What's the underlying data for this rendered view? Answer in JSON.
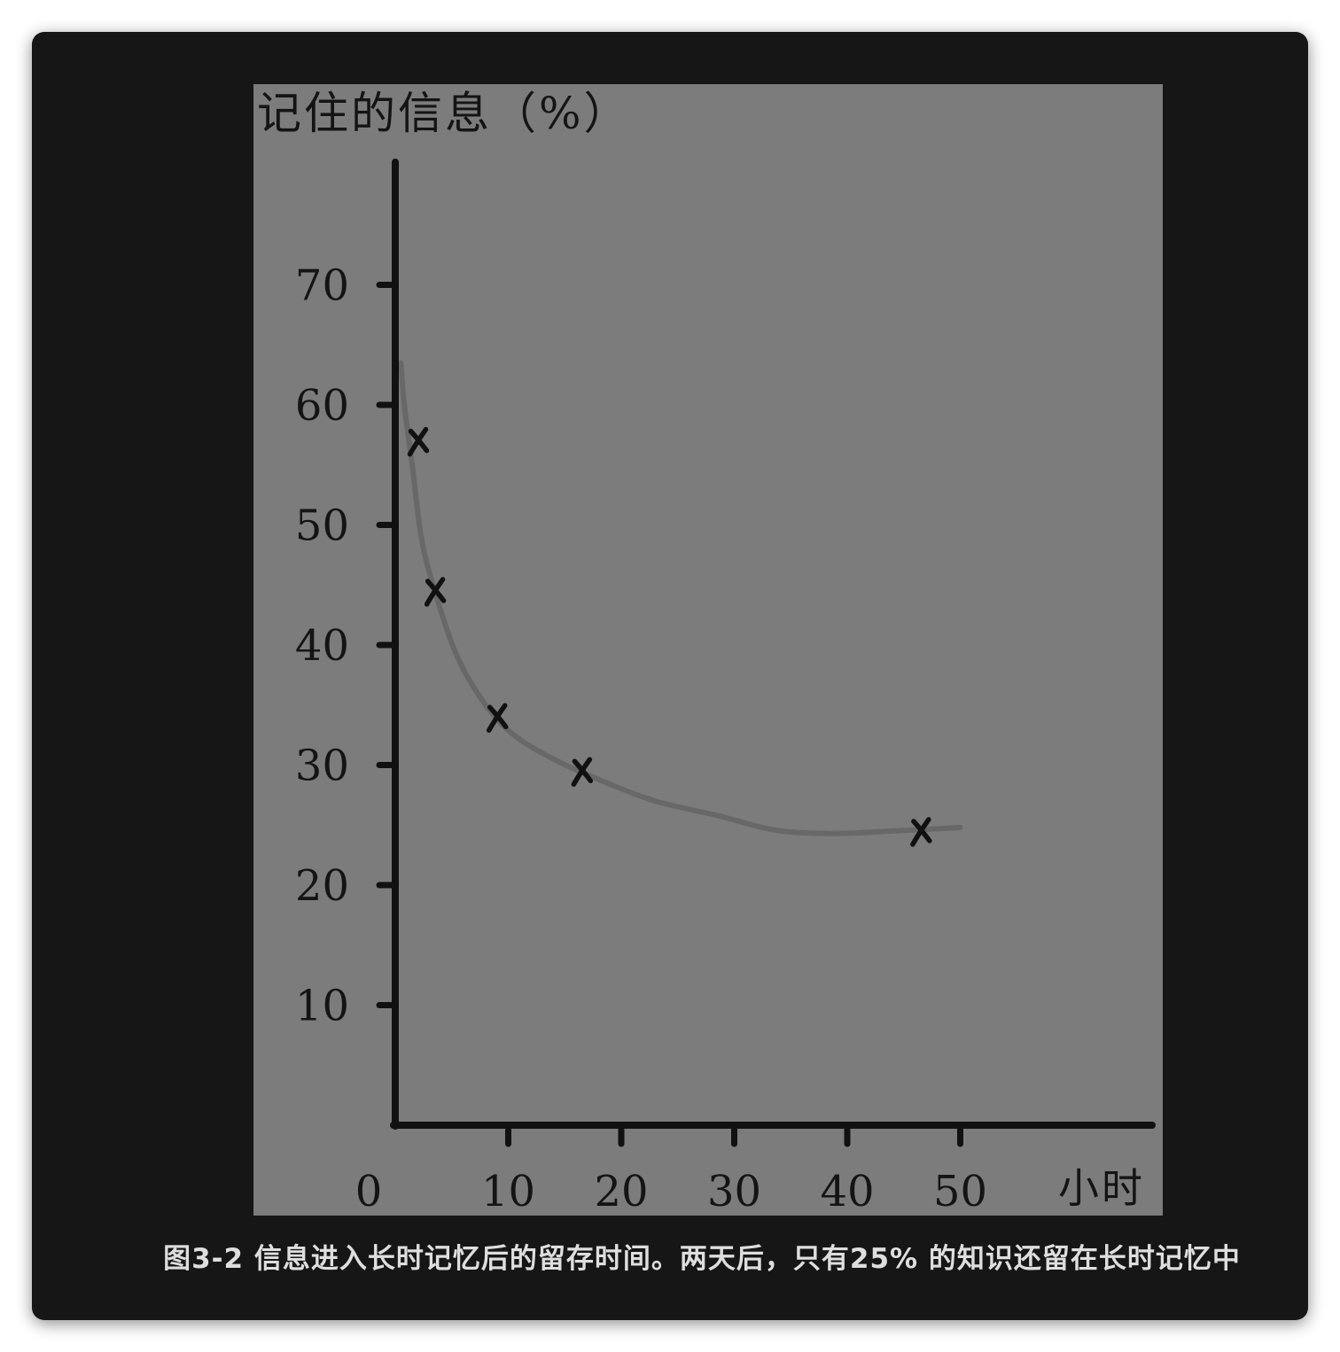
{
  "figure": {
    "caption": "图3-2 信息进入长时记忆后的留存时间。两天后，只有25% 的知识还留在长时记忆中",
    "colors": {
      "card_background": "#161616",
      "plot_background": "#7c7c7c",
      "ink": "#111111",
      "curve": "#6a6a6a",
      "caption_text": "#dedede"
    }
  },
  "chart_data": {
    "type": "scatter",
    "title": "",
    "ylabel": "记住的信息（%）",
    "xlabel": "小时",
    "x_ticks": [
      0,
      10,
      20,
      30,
      40,
      50
    ],
    "y_ticks": [
      10,
      20,
      30,
      40,
      50,
      60,
      70
    ],
    "xlim": [
      0,
      67
    ],
    "ylim": [
      0,
      80
    ],
    "grid": false,
    "points": [
      {
        "x": 2,
        "y": 57
      },
      {
        "x": 3.5,
        "y": 44.5
      },
      {
        "x": 9,
        "y": 34
      },
      {
        "x": 16.5,
        "y": 29.5
      },
      {
        "x": 46.5,
        "y": 24.5
      }
    ],
    "trend_curve": [
      {
        "x": 0.5,
        "y": 63.5
      },
      {
        "x": 0.8,
        "y": 60
      },
      {
        "x": 1.5,
        "y": 55
      },
      {
        "x": 2.3,
        "y": 49
      },
      {
        "x": 3.5,
        "y": 44.5
      },
      {
        "x": 5.5,
        "y": 39
      },
      {
        "x": 8,
        "y": 35
      },
      {
        "x": 10.5,
        "y": 32.5
      },
      {
        "x": 14,
        "y": 30.5
      },
      {
        "x": 18,
        "y": 28.8
      },
      {
        "x": 23,
        "y": 27
      },
      {
        "x": 28.5,
        "y": 25.8
      },
      {
        "x": 33.5,
        "y": 24.6
      },
      {
        "x": 38.5,
        "y": 24.3
      },
      {
        "x": 44,
        "y": 24.5
      },
      {
        "x": 50,
        "y": 24.8
      }
    ]
  }
}
